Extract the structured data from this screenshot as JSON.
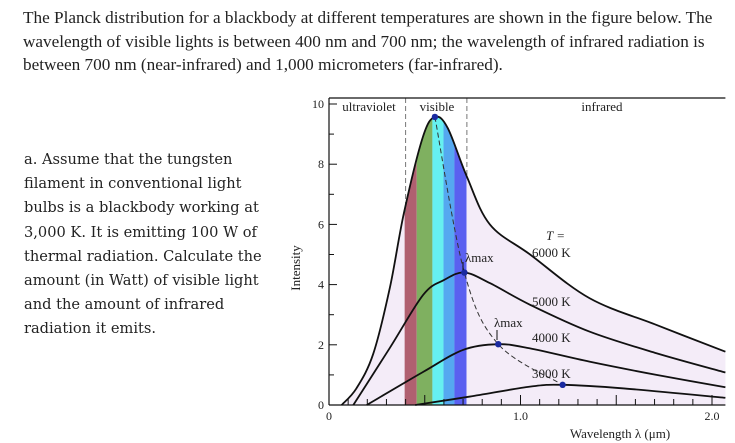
{
  "intro_text": "The Planck distribution for a blackbody at different temperatures are shown in the figure below. The wavelength of visible lights is between 400 nm and 700 nm; the wavelength of infrared radiation is between 700 nm (near-infrared) and 1,000 micrometers (far-infrared).",
  "question_text": "a. Assume that the tungsten filament in conventional light bulbs is a blackbody working at 3,000 K. It is emitting 100 W of thermal radiation. Calculate the amount (in Watt) of visible light and the amount of infrared radiation it emits.",
  "chart_data": {
    "type": "line",
    "xlabel": "Wavelength  λ  (μm)",
    "ylabel": "Intensity",
    "xlim": [
      0,
      2.07
    ],
    "ylim": [
      0,
      10
    ],
    "x_ticks": [
      "0",
      "1.0",
      "2.0"
    ],
    "y_ticks": [
      "0",
      "2",
      "4",
      "6",
      "8",
      "10"
    ],
    "grid": false,
    "region_labels": [
      "ultraviolet",
      "visible",
      "infrared"
    ],
    "region_bounds_um": [
      0.4,
      0.72
    ],
    "temperature_label": "T =",
    "max_label": "λmax",
    "visible_band_colors": [
      "#b06070",
      "#7fb060",
      "#66f0f0",
      "#55a8f0",
      "#5a60f0"
    ],
    "fill_color": "#f4ecf8",
    "peak_color": "#1a2aa0",
    "series": [
      {
        "name": "6000 K",
        "x": [
          0.066,
          0.143,
          0.231,
          0.318,
          0.392,
          0.49,
          0.553,
          0.62,
          0.719,
          0.84,
          1.05,
          1.36,
          1.71,
          2.07
        ],
        "y": [
          0,
          0.55,
          1.7,
          3.9,
          6.4,
          8.9,
          9.57,
          9.2,
          7.6,
          6.0,
          5.0,
          3.55,
          2.66,
          1.77
        ],
        "peak": [
          0.553,
          9.57
        ]
      },
      {
        "name": "5000 K",
        "x": [
          0.127,
          0.318,
          0.492,
          0.6,
          0.707,
          0.84,
          1.05,
          1.36,
          1.71,
          2.07
        ],
        "y": [
          0,
          1.9,
          3.66,
          4.15,
          4.4,
          4.05,
          3.33,
          2.44,
          1.72,
          1.08
        ],
        "peak": [
          0.707,
          4.4
        ]
      },
      {
        "name": "4000 K",
        "x": [
          0.197,
          0.492,
          0.7,
          0.884,
          1.05,
          1.36,
          1.71,
          2.07
        ],
        "y": [
          0,
          1.1,
          1.83,
          2.02,
          1.88,
          1.44,
          1.0,
          0.59
        ],
        "peak": [
          0.884,
          2.02
        ]
      },
      {
        "name": "3000 K",
        "x": [
          0.45,
          0.736,
          1.05,
          1.22,
          1.54,
          2.07
        ],
        "y": [
          0,
          0.28,
          0.61,
          0.67,
          0.55,
          0.24
        ],
        "peak": [
          1.22,
          0.67
        ]
      }
    ]
  }
}
